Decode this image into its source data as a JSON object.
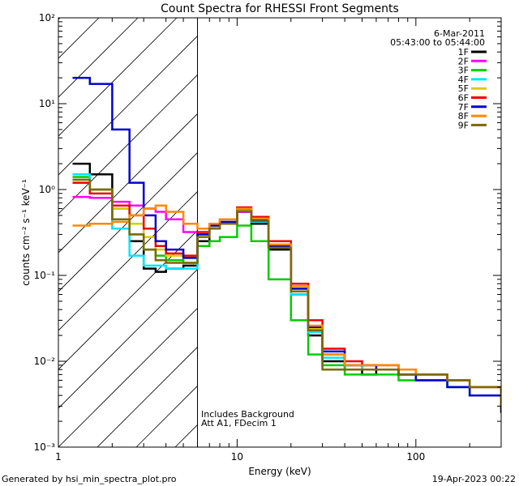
{
  "chart_data": {
    "type": "line",
    "title": "Count Spectra for RHESSI Front Segments",
    "xlabel": "Energy (keV)",
    "ylabel": "counts cm⁻² s⁻¹ keV⁻¹",
    "xscale": "log",
    "yscale": "log",
    "xlim": [
      1,
      300
    ],
    "ylim": [
      0.001,
      100
    ],
    "x_ticks": [
      {
        "v": 1,
        "label": "1"
      },
      {
        "v": 10,
        "label": "10"
      },
      {
        "v": 100,
        "label": "100"
      }
    ],
    "y_ticks": [
      {
        "v": 0.001,
        "label": "10⁻³"
      },
      {
        "v": 0.01,
        "label": "10⁻²"
      },
      {
        "v": 0.1,
        "label": "10⁻¹"
      },
      {
        "v": 1,
        "label": "10⁰"
      },
      {
        "v": 10,
        "label": "10¹"
      },
      {
        "v": 100,
        "label": "10²"
      }
    ],
    "hatched_region_max_kev": 6,
    "date": "6-Mar-2011",
    "time_range": "05:43:00 to 05:44:00",
    "annotations": [
      "Includes Background",
      "Att A1, FDecim 1"
    ],
    "series": [
      {
        "name": "1F",
        "color": "#000000",
        "x": [
          1.2,
          1.5,
          2,
          2.5,
          3,
          3.5,
          4,
          5,
          6,
          7,
          8,
          10,
          12,
          15,
          20,
          25,
          30,
          40,
          50,
          60,
          80,
          100,
          150,
          200,
          300
        ],
        "values": [
          2.0,
          1.5,
          0.45,
          0.25,
          0.12,
          0.11,
          0.12,
          0.13,
          0.25,
          0.35,
          0.4,
          0.55,
          0.4,
          0.2,
          0.06,
          0.02,
          0.01,
          0.008,
          0.007,
          0.008,
          0.007,
          0.006,
          0.005,
          0.004,
          0.0025
        ]
      },
      {
        "name": "2F",
        "color": "#ff00ff",
        "x": [
          1.2,
          1.5,
          2,
          2.5,
          3,
          3.5,
          4,
          5,
          6,
          7,
          8,
          10,
          12,
          15,
          20,
          25,
          30,
          40,
          50,
          60,
          80,
          100,
          150,
          200,
          300
        ],
        "values": [
          0.82,
          0.8,
          0.72,
          0.65,
          0.6,
          0.55,
          0.45,
          0.32,
          0.3,
          0.35,
          0.4,
          0.55,
          0.42,
          0.22,
          0.07,
          0.025,
          0.012,
          0.009,
          0.008,
          0.008,
          0.007,
          0.007,
          0.006,
          0.005,
          0.003
        ]
      },
      {
        "name": "3F",
        "color": "#00cc00",
        "x": [
          1.2,
          1.5,
          2,
          2.5,
          3,
          3.5,
          4,
          5,
          6,
          7,
          8,
          10,
          12,
          15,
          20,
          25,
          30,
          40,
          50,
          60,
          80,
          100,
          150,
          200,
          300
        ],
        "values": [
          1.4,
          1.0,
          0.6,
          0.3,
          0.2,
          0.17,
          0.15,
          0.14,
          0.22,
          0.25,
          0.28,
          0.38,
          0.25,
          0.09,
          0.03,
          0.012,
          0.009,
          0.007,
          0.007,
          0.007,
          0.006,
          0.006,
          0.005,
          0.004,
          0.003
        ]
      },
      {
        "name": "4F",
        "color": "#00e5ff",
        "x": [
          1.2,
          1.5,
          2,
          2.5,
          3,
          3.5,
          4,
          5,
          6,
          7,
          8,
          10,
          12,
          15,
          20,
          25,
          30,
          40,
          50,
          60,
          80,
          100,
          150,
          200,
          300
        ],
        "values": [
          1.5,
          1.0,
          0.35,
          0.17,
          0.13,
          0.13,
          0.12,
          0.12,
          0.3,
          0.38,
          0.42,
          0.58,
          0.42,
          0.21,
          0.06,
          0.022,
          0.011,
          0.009,
          0.008,
          0.008,
          0.007,
          0.006,
          0.005,
          0.004,
          0.003
        ]
      },
      {
        "name": "5F",
        "color": "#ddcc00",
        "x": [
          1.2,
          1.5,
          2,
          2.5,
          3,
          3.5,
          4,
          5,
          6,
          7,
          8,
          10,
          12,
          15,
          20,
          25,
          30,
          40,
          50,
          60,
          80,
          100,
          150,
          200,
          300
        ],
        "values": [
          1.2,
          1.0,
          0.6,
          0.4,
          0.28,
          0.2,
          0.17,
          0.16,
          0.3,
          0.36,
          0.42,
          0.58,
          0.45,
          0.22,
          0.07,
          0.024,
          0.012,
          0.009,
          0.009,
          0.009,
          0.008,
          0.007,
          0.006,
          0.005,
          0.003
        ]
      },
      {
        "name": "6F",
        "color": "#ee0000",
        "x": [
          1.2,
          1.5,
          2,
          2.5,
          3,
          3.5,
          4,
          5,
          6,
          7,
          8,
          10,
          12,
          15,
          20,
          25,
          30,
          40,
          50,
          60,
          80,
          100,
          150,
          200,
          300
        ],
        "values": [
          1.2,
          0.9,
          0.65,
          0.5,
          0.35,
          0.22,
          0.18,
          0.17,
          0.32,
          0.4,
          0.45,
          0.62,
          0.48,
          0.25,
          0.08,
          0.03,
          0.014,
          0.01,
          0.009,
          0.009,
          0.008,
          0.007,
          0.006,
          0.005,
          0.003
        ]
      },
      {
        "name": "7F",
        "color": "#0000cc",
        "x": [
          1.2,
          1.5,
          2,
          2.5,
          3,
          3.5,
          4,
          5,
          6,
          7,
          8,
          10,
          12,
          15,
          20,
          25,
          30,
          40,
          50,
          60,
          80,
          100,
          150,
          200,
          300
        ],
        "values": [
          20,
          17,
          5.0,
          1.2,
          0.5,
          0.25,
          0.2,
          0.16,
          0.3,
          0.38,
          0.42,
          0.6,
          0.45,
          0.22,
          0.07,
          0.025,
          0.013,
          0.009,
          0.009,
          0.008,
          0.007,
          0.006,
          0.005,
          0.004,
          0.003
        ]
      },
      {
        "name": "8F",
        "color": "#ff8800",
        "x": [
          1.2,
          1.5,
          2,
          2.5,
          3,
          3.5,
          4,
          5,
          6,
          7,
          8,
          10,
          12,
          15,
          20,
          25,
          30,
          40,
          50,
          60,
          80,
          100,
          150,
          200,
          300
        ],
        "values": [
          0.38,
          0.4,
          0.42,
          0.5,
          0.6,
          0.65,
          0.55,
          0.4,
          0.35,
          0.4,
          0.45,
          0.6,
          0.46,
          0.23,
          0.075,
          0.026,
          0.012,
          0.009,
          0.009,
          0.009,
          0.008,
          0.007,
          0.006,
          0.005,
          0.003
        ]
      },
      {
        "name": "9F",
        "color": "#7a6a00",
        "x": [
          1.2,
          1.5,
          2,
          2.5,
          3,
          3.5,
          4,
          5,
          6,
          7,
          8,
          10,
          12,
          15,
          20,
          25,
          30,
          40,
          50,
          60,
          80,
          100,
          150,
          200,
          300
        ],
        "values": [
          1.3,
          1.0,
          0.45,
          0.3,
          0.2,
          0.15,
          0.14,
          0.14,
          0.28,
          0.35,
          0.4,
          0.56,
          0.43,
          0.21,
          0.065,
          0.023,
          0.008,
          0.008,
          0.008,
          0.008,
          0.007,
          0.007,
          0.006,
          0.005,
          0.003
        ]
      }
    ]
  },
  "footer": {
    "generated_by": "Generated by hsi_min_spectra_plot.pro",
    "date": "19-Apr-2023 00:22"
  }
}
